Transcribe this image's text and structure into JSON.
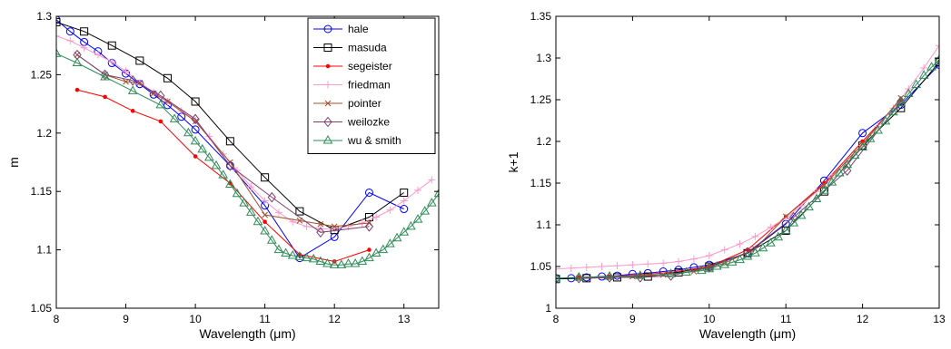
{
  "chart_data": [
    {
      "type": "line",
      "xlabel": "Wavelength (μm)",
      "ylabel": "m",
      "xlim": [
        8,
        13.5
      ],
      "ylim": [
        1.05,
        1.3
      ],
      "xticks": [
        8,
        9,
        10,
        11,
        12,
        13
      ],
      "yticks": [
        1.05,
        1.1,
        1.15,
        1.2,
        1.25,
        1.3
      ],
      "legend": "top-right",
      "grid": false,
      "series": [
        {
          "name": "hale",
          "color": "#0000ff",
          "marker": "circle",
          "x": [
            8.0,
            8.2,
            8.4,
            8.6,
            8.8,
            9.0,
            9.2,
            9.4,
            9.6,
            9.8,
            10.0,
            10.5,
            11.0,
            11.5,
            12.0,
            12.5,
            13.0
          ],
          "y": [
            1.297,
            1.287,
            1.278,
            1.27,
            1.26,
            1.251,
            1.242,
            1.233,
            1.224,
            1.214,
            1.203,
            1.172,
            1.138,
            1.093,
            1.111,
            1.149,
            1.135
          ]
        },
        {
          "name": "masuda",
          "color": "#000000",
          "marker": "square",
          "x": [
            8.0,
            8.4,
            8.8,
            9.2,
            9.6,
            10.0,
            10.5,
            11.0,
            11.5,
            12.0,
            12.5,
            13.0
          ],
          "y": [
            1.295,
            1.287,
            1.275,
            1.262,
            1.247,
            1.227,
            1.193,
            1.162,
            1.133,
            1.117,
            1.128,
            1.149
          ]
        },
        {
          "name": "segeister",
          "color": "#ff0000",
          "marker": "dot",
          "x": [
            8.3,
            8.7,
            9.1,
            9.5,
            10.0,
            10.5,
            11.0,
            11.5,
            12.0,
            12.5
          ],
          "y": [
            1.237,
            1.231,
            1.219,
            1.21,
            1.18,
            1.157,
            1.124,
            1.096,
            1.09,
            1.1
          ]
        },
        {
          "name": "friedman",
          "color": "#ff99cc",
          "marker": "plus",
          "x": [
            8.0,
            8.2,
            8.4,
            8.6,
            8.8,
            9.0,
            9.2,
            9.4,
            9.6,
            9.8,
            10.0,
            10.2,
            10.4,
            10.6,
            10.8,
            11.0,
            11.2,
            11.4,
            11.6,
            11.8,
            12.0,
            12.2,
            12.4,
            12.6,
            12.8,
            13.0,
            13.2,
            13.4
          ],
          "y": [
            1.283,
            1.279,
            1.273,
            1.267,
            1.261,
            1.253,
            1.243,
            1.235,
            1.227,
            1.219,
            1.211,
            1.197,
            1.182,
            1.168,
            1.154,
            1.142,
            1.132,
            1.124,
            1.12,
            1.118,
            1.118,
            1.12,
            1.123,
            1.128,
            1.134,
            1.142,
            1.151,
            1.16
          ]
        },
        {
          "name": "pointer",
          "color": "#a0522d",
          "marker": "x",
          "x": [
            8.3,
            8.7,
            9.0,
            9.2,
            9.4,
            9.6,
            10.0,
            10.5,
            11.0,
            11.5,
            11.8,
            12.0,
            12.5
          ],
          "y": [
            1.267,
            1.25,
            1.244,
            1.243,
            1.234,
            1.227,
            1.21,
            1.175,
            1.13,
            1.125,
            1.122,
            1.12,
            1.123
          ]
        },
        {
          "name": "weilozke",
          "color": "#7b3f6e",
          "marker": "diamond",
          "x": [
            8.3,
            8.7,
            9.1,
            9.5,
            10.0,
            10.5,
            11.1,
            11.8,
            12.5
          ],
          "y": [
            1.267,
            1.25,
            1.245,
            1.232,
            1.212,
            1.172,
            1.145,
            1.115,
            1.12
          ]
        },
        {
          "name": "wu & smith",
          "color": "#2e8b57",
          "marker": "triangle",
          "x": [
            8.0,
            8.3,
            8.7,
            9.1,
            9.5,
            9.7,
            9.9,
            10.0,
            10.1,
            10.2,
            10.3,
            10.4,
            10.5,
            10.6,
            10.7,
            10.8,
            10.9,
            11.0,
            11.1,
            11.2,
            11.3,
            11.4,
            11.5,
            11.6,
            11.7,
            11.8,
            11.9,
            12.0,
            12.1,
            12.2,
            12.3,
            12.4,
            12.5,
            12.6,
            12.7,
            12.8,
            12.9,
            13.0,
            13.1,
            13.2,
            13.3,
            13.4,
            13.5
          ],
          "y": [
            1.268,
            1.26,
            1.248,
            1.236,
            1.224,
            1.212,
            1.2,
            1.193,
            1.186,
            1.179,
            1.172,
            1.164,
            1.156,
            1.148,
            1.14,
            1.132,
            1.124,
            1.116,
            1.108,
            1.1,
            1.097,
            1.095,
            1.094,
            1.093,
            1.092,
            1.09,
            1.088,
            1.087,
            1.087,
            1.088,
            1.088,
            1.09,
            1.093,
            1.097,
            1.1,
            1.105,
            1.11,
            1.115,
            1.12,
            1.126,
            1.133,
            1.14,
            1.148
          ]
        }
      ]
    },
    {
      "type": "line",
      "xlabel": "Wavelength (μm)",
      "ylabel": "k+1",
      "xlim": [
        8,
        13
      ],
      "ylim": [
        1,
        1.35
      ],
      "xticks": [
        8,
        9,
        10,
        11,
        12,
        13
      ],
      "yticks": [
        1,
        1.05,
        1.1,
        1.15,
        1.2,
        1.25,
        1.3,
        1.35
      ],
      "grid": false,
      "series": [
        {
          "color": "#0000ff",
          "marker": "circle",
          "x": [
            8.0,
            8.2,
            8.4,
            8.6,
            8.8,
            9.0,
            9.2,
            9.4,
            9.6,
            9.8,
            10.0,
            10.5,
            11.0,
            11.5,
            12.0,
            12.5,
            13.0
          ],
          "y": [
            1.036,
            1.036,
            1.037,
            1.038,
            1.039,
            1.041,
            1.042,
            1.044,
            1.046,
            1.049,
            1.052,
            1.066,
            1.101,
            1.153,
            1.21,
            1.244,
            1.292
          ]
        },
        {
          "color": "#000000",
          "marker": "square",
          "x": [
            8.0,
            8.4,
            8.8,
            9.2,
            9.6,
            10.0,
            10.5,
            11.0,
            11.5,
            12.0,
            12.5,
            13.0
          ],
          "y": [
            1.035,
            1.036,
            1.037,
            1.038,
            1.043,
            1.05,
            1.066,
            1.093,
            1.14,
            1.195,
            1.24,
            1.295
          ]
        },
        {
          "color": "#ff0000",
          "marker": "dot",
          "x": [
            8.3,
            8.7,
            9.1,
            9.5,
            10.0,
            10.5,
            11.0,
            11.5,
            12.0,
            12.5
          ],
          "y": [
            1.037,
            1.038,
            1.04,
            1.043,
            1.05,
            1.07,
            1.11,
            1.15,
            1.2,
            1.25
          ]
        },
        {
          "color": "#ff99cc",
          "marker": "plus",
          "x": [
            8.0,
            8.2,
            8.4,
            8.6,
            8.8,
            9.0,
            9.2,
            9.4,
            9.6,
            9.8,
            10.0,
            10.2,
            10.4,
            10.6,
            10.8,
            11.0,
            11.2,
            11.4,
            11.6,
            11.8,
            12.0,
            12.2,
            12.4,
            12.6,
            12.8,
            13.0
          ],
          "y": [
            1.047,
            1.048,
            1.049,
            1.05,
            1.051,
            1.052,
            1.053,
            1.054,
            1.056,
            1.059,
            1.063,
            1.07,
            1.077,
            1.086,
            1.097,
            1.108,
            1.123,
            1.14,
            1.157,
            1.175,
            1.195,
            1.218,
            1.24,
            1.263,
            1.288,
            1.315
          ]
        },
        {
          "color": "#a0522d",
          "marker": "x",
          "x": [
            8.3,
            8.7,
            9.0,
            9.4,
            9.8,
            10.2,
            10.6,
            11.0,
            11.5,
            12.0,
            12.5
          ],
          "y": [
            1.036,
            1.037,
            1.038,
            1.04,
            1.044,
            1.054,
            1.071,
            1.11,
            1.148,
            1.197,
            1.252
          ]
        },
        {
          "color": "#7b3f6e",
          "marker": "diamond",
          "x": [
            8.3,
            8.7,
            9.1,
            9.5,
            10.0,
            10.5,
            11.1,
            11.8,
            12.5
          ],
          "y": [
            1.036,
            1.037,
            1.037,
            1.039,
            1.049,
            1.067,
            1.109,
            1.165,
            1.248
          ]
        },
        {
          "color": "#2e8b57",
          "marker": "triangle",
          "x": [
            8.0,
            8.3,
            8.7,
            9.1,
            9.5,
            9.7,
            9.9,
            10.0,
            10.1,
            10.2,
            10.3,
            10.4,
            10.5,
            10.6,
            10.7,
            10.8,
            10.9,
            11.0,
            11.1,
            11.2,
            11.3,
            11.4,
            11.5,
            11.6,
            11.7,
            11.8,
            11.9,
            12.0,
            12.1,
            12.2,
            12.3,
            12.4,
            12.5,
            12.6,
            12.7,
            12.8,
            12.9,
            13.0
          ],
          "y": [
            1.036,
            1.037,
            1.038,
            1.039,
            1.041,
            1.043,
            1.045,
            1.047,
            1.05,
            1.052,
            1.055,
            1.058,
            1.062,
            1.066,
            1.072,
            1.078,
            1.085,
            1.093,
            1.102,
            1.111,
            1.121,
            1.131,
            1.141,
            1.151,
            1.162,
            1.172,
            1.183,
            1.193,
            1.203,
            1.213,
            1.224,
            1.235,
            1.246,
            1.257,
            1.268,
            1.279,
            1.289,
            1.298
          ]
        }
      ]
    }
  ]
}
